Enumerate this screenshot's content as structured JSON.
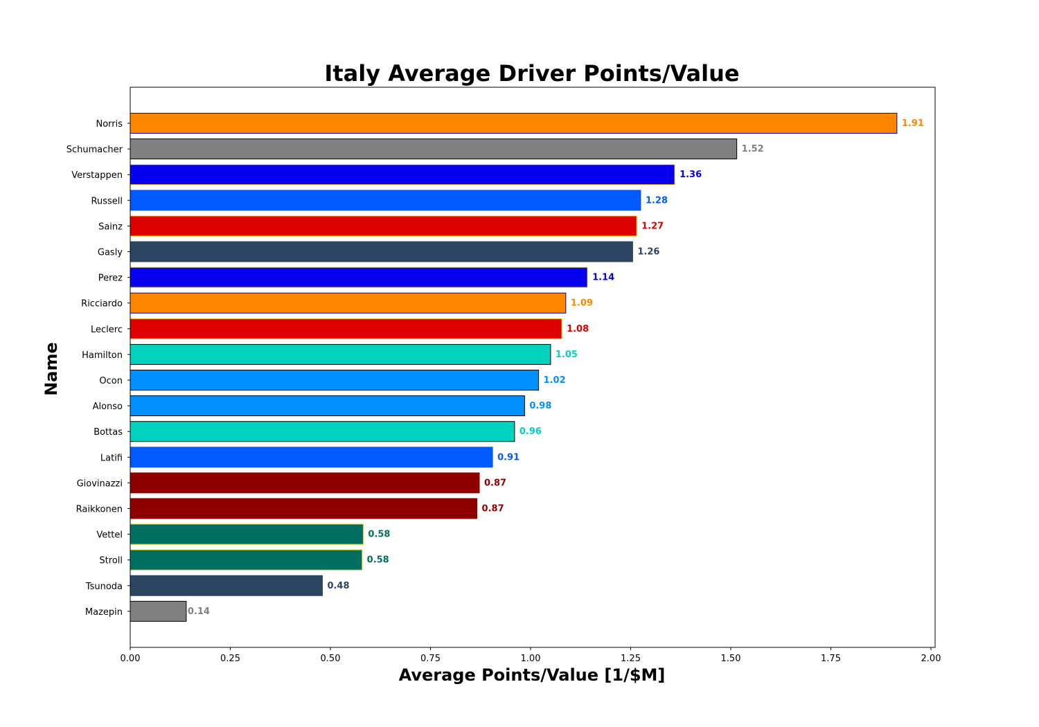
{
  "chart_data": {
    "type": "bar",
    "orientation": "horizontal",
    "title": "Italy Average Driver Points/Value",
    "xlabel": "Average Points/Value [1/$M]",
    "ylabel": "Name",
    "xlim": [
      0,
      2.0
    ],
    "xticks": [
      "0.00",
      "0.25",
      "0.50",
      "0.75",
      "1.00",
      "1.25",
      "1.50",
      "1.75",
      "2.00"
    ],
    "grid": false,
    "bars": [
      {
        "name": "Norris",
        "value": 1.915,
        "label": "1.91",
        "color": "#FF8700",
        "edge": "#0000CC"
      },
      {
        "name": "Schumacher",
        "value": 1.515,
        "label": "1.52",
        "color": "#808080",
        "edge": "#000000"
      },
      {
        "name": "Verstappen",
        "value": 1.36,
        "label": "1.36",
        "color": "#0600EF",
        "edge": "#FFD700"
      },
      {
        "name": "Russell",
        "value": 1.275,
        "label": "1.28",
        "color": "#005AFF",
        "edge": "#005AFF"
      },
      {
        "name": "Sainz",
        "value": 1.265,
        "label": "1.27",
        "color": "#DC0000",
        "edge": "#FFD700"
      },
      {
        "name": "Gasly",
        "value": 1.255,
        "label": "1.26",
        "color": "#2B4562",
        "edge": "#2B4562"
      },
      {
        "name": "Perez",
        "value": 1.142,
        "label": "1.14",
        "color": "#0600EF",
        "edge": "#FFD700"
      },
      {
        "name": "Ricciardo",
        "value": 1.088,
        "label": "1.09",
        "color": "#FF8700",
        "edge": "#0000CC"
      },
      {
        "name": "Leclerc",
        "value": 1.078,
        "label": "1.08",
        "color": "#DC0000",
        "edge": "#FFD700"
      },
      {
        "name": "Hamilton",
        "value": 1.05,
        "label": "1.05",
        "color": "#00D2BE",
        "edge": "#000000"
      },
      {
        "name": "Ocon",
        "value": 1.02,
        "label": "1.02",
        "color": "#0090FF",
        "edge": "#000000"
      },
      {
        "name": "Alonso",
        "value": 0.985,
        "label": "0.98",
        "color": "#0090FF",
        "edge": "#000000"
      },
      {
        "name": "Bottas",
        "value": 0.96,
        "label": "0.96",
        "color": "#00D2BE",
        "edge": "#000000"
      },
      {
        "name": "Latifi",
        "value": 0.905,
        "label": "0.91",
        "color": "#005AFF",
        "edge": "#005AFF"
      },
      {
        "name": "Giovinazzi",
        "value": 0.872,
        "label": "0.87",
        "color": "#900000",
        "edge": "#900000"
      },
      {
        "name": "Raikkonen",
        "value": 0.866,
        "label": "0.87",
        "color": "#900000",
        "edge": "#900000"
      },
      {
        "name": "Vettel",
        "value": 0.582,
        "label": "0.58",
        "color": "#006F62",
        "edge": "#CCCC00"
      },
      {
        "name": "Stroll",
        "value": 0.579,
        "label": "0.58",
        "color": "#006F62",
        "edge": "#CCCC00"
      },
      {
        "name": "Tsunoda",
        "value": 0.48,
        "label": "0.48",
        "color": "#2B4562",
        "edge": "#2B4562"
      },
      {
        "name": "Mazepin",
        "value": 0.14,
        "label": "0.14",
        "color": "#808080",
        "edge": "#000000"
      }
    ]
  }
}
